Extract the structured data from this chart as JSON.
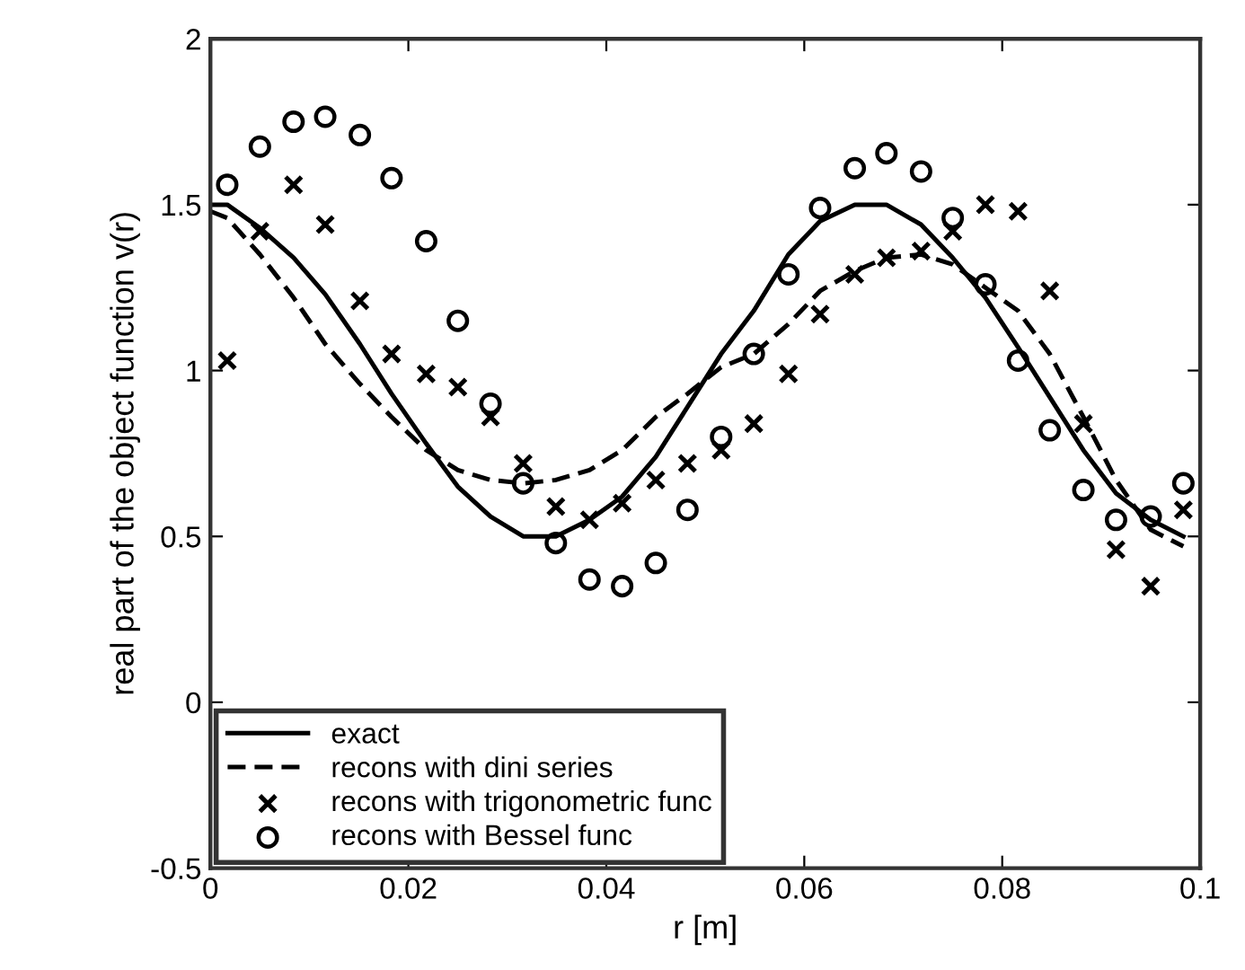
{
  "chart_data": {
    "type": "line",
    "xlabel": "r [m]",
    "ylabel": "real part of the object function v(r)",
    "xlim": [
      0,
      0.1
    ],
    "xticks": [
      0,
      0.02,
      0.04,
      0.06,
      0.08,
      0.1
    ],
    "ylim": [
      -0.5,
      2
    ],
    "yticks": [
      -0.5,
      0,
      0.5,
      1,
      1.5,
      2
    ],
    "grid": false,
    "legend": "bottom left",
    "series": [
      {
        "name": "exact",
        "type": "line",
        "color": "#000000",
        "line_style": "solid",
        "marker": "none",
        "x": [
          0,
          0.0017,
          0.005,
          0.0084,
          0.0116,
          0.0151,
          0.0183,
          0.0218,
          0.025,
          0.0283,
          0.0316,
          0.0349,
          0.0383,
          0.0416,
          0.045,
          0.0482,
          0.0516,
          0.0549,
          0.0584,
          0.0616,
          0.0651,
          0.0683,
          0.0718,
          0.075,
          0.0783,
          0.0816,
          0.0848,
          0.0882,
          0.0915,
          0.095,
          0.0983
        ],
        "values": [
          1.5,
          1.5,
          1.43,
          1.34,
          1.23,
          1.08,
          0.93,
          0.78,
          0.65,
          0.56,
          0.5,
          0.5,
          0.55,
          0.62,
          0.74,
          0.89,
          1.05,
          1.18,
          1.35,
          1.45,
          1.5,
          1.5,
          1.44,
          1.34,
          1.22,
          1.07,
          0.92,
          0.76,
          0.63,
          0.55,
          0.5
        ]
      },
      {
        "name": "recons with dini series",
        "type": "line",
        "color": "#000000",
        "line_style": "dashed",
        "marker": "none",
        "x": [
          0,
          0.0017,
          0.005,
          0.0084,
          0.0116,
          0.0151,
          0.0183,
          0.0218,
          0.025,
          0.0283,
          0.0316,
          0.0349,
          0.0383,
          0.0416,
          0.045,
          0.0482,
          0.0516,
          0.0549,
          0.0584,
          0.0616,
          0.0651,
          0.0683,
          0.0718,
          0.075,
          0.0783,
          0.0816,
          0.0848,
          0.0882,
          0.0915,
          0.095,
          0.0983
        ],
        "values": [
          1.48,
          1.46,
          1.35,
          1.22,
          1.08,
          0.96,
          0.86,
          0.76,
          0.7,
          0.67,
          0.66,
          0.67,
          0.7,
          0.76,
          0.86,
          0.93,
          1.01,
          1.05,
          1.14,
          1.24,
          1.3,
          1.34,
          1.35,
          1.32,
          1.25,
          1.18,
          1.05,
          0.86,
          0.67,
          0.52,
          0.47
        ]
      },
      {
        "name": "recons with trigonometric func",
        "type": "scatter",
        "color": "#000000",
        "marker": "cross",
        "x": [
          0.0017,
          0.005,
          0.0084,
          0.0116,
          0.0151,
          0.0183,
          0.0218,
          0.025,
          0.0283,
          0.0316,
          0.0349,
          0.0383,
          0.0416,
          0.045,
          0.0482,
          0.0516,
          0.0549,
          0.0584,
          0.0616,
          0.0651,
          0.0683,
          0.0718,
          0.075,
          0.0783,
          0.0816,
          0.0848,
          0.0882,
          0.0915,
          0.095,
          0.0983
        ],
        "values": [
          1.03,
          1.42,
          1.56,
          1.44,
          1.21,
          1.05,
          0.99,
          0.95,
          0.86,
          0.72,
          0.59,
          0.55,
          0.6,
          0.67,
          0.72,
          0.76,
          0.84,
          0.99,
          1.17,
          1.29,
          1.34,
          1.36,
          1.42,
          1.5,
          1.48,
          1.24,
          0.84,
          0.46,
          0.35,
          0.58
        ]
      },
      {
        "name": "recons with Bessel func",
        "type": "scatter",
        "color": "#000000",
        "marker": "circle",
        "x": [
          0.0017,
          0.005,
          0.0084,
          0.0116,
          0.0151,
          0.0183,
          0.0218,
          0.025,
          0.0283,
          0.0316,
          0.0349,
          0.0383,
          0.0416,
          0.045,
          0.0482,
          0.0516,
          0.0549,
          0.0584,
          0.0616,
          0.0651,
          0.0683,
          0.0718,
          0.075,
          0.0783,
          0.0816,
          0.0848,
          0.0882,
          0.0915,
          0.095,
          0.0983
        ],
        "values": [
          1.56,
          1.675,
          1.75,
          1.765,
          1.71,
          1.58,
          1.39,
          1.15,
          0.9,
          0.66,
          0.48,
          0.37,
          0.35,
          0.42,
          0.58,
          0.8,
          1.05,
          1.29,
          1.49,
          1.61,
          1.655,
          1.6,
          1.46,
          1.26,
          1.03,
          0.82,
          0.64,
          0.55,
          0.56,
          0.66
        ]
      }
    ]
  }
}
